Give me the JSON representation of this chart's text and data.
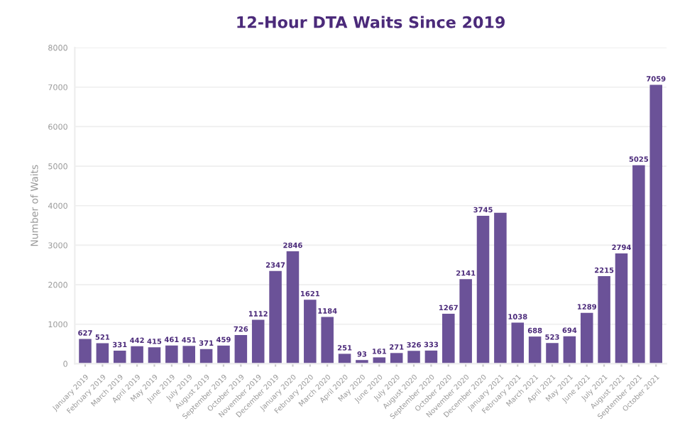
{
  "chart_data": {
    "type": "bar",
    "title": "12-Hour DTA Waits Since 2019",
    "ylabel": "Number of Waits",
    "categories": [
      "January 2019",
      "February 2019",
      "March 2019",
      "April 2019",
      "May 2019",
      "June 2019",
      "July 2019",
      "August 2019",
      "September 2019",
      "October 2019",
      "November 2019",
      "December 2019",
      "January 2020",
      "February 2020",
      "March 2020",
      "April 2020",
      "May 2020",
      "June 2020",
      "July 2020",
      "August 2020",
      "September 2020",
      "October 2020",
      "November 2020",
      "December 2020",
      "January 2021",
      "February 2021",
      "March 2021",
      "April 2021",
      "May 2021",
      "June 2021",
      "July 2021",
      "August 2021",
      "September 2021",
      "October 2021"
    ],
    "values": [
      627,
      521,
      331,
      442,
      415,
      461,
      451,
      371,
      459,
      726,
      1112,
      2347,
      2846,
      1621,
      1184,
      251,
      93,
      161,
      271,
      326,
      333,
      1267,
      2141,
      3745,
      3820,
      1038,
      688,
      523,
      694,
      1289,
      2215,
      2794,
      5025,
      7059
    ],
    "value_labels": [
      "627",
      "521",
      "331",
      "442",
      "415",
      "461",
      "451",
      "371",
      "459",
      "726",
      "1112",
      "2347",
      "2846",
      "1621",
      "1184",
      "251",
      "93",
      "161",
      "271",
      "326",
      "333",
      "1267",
      "2141",
      "3745",
      null,
      "1038",
      "688",
      "523",
      "694",
      "1289",
      "2215",
      "2794",
      "5025",
      "7059"
    ],
    "color": "#6b5298",
    "ylim": [
      0,
      8000
    ],
    "yticks": [
      0,
      1000,
      2000,
      3000,
      4000,
      5000,
      6000,
      7000,
      8000
    ],
    "grid": "y"
  }
}
